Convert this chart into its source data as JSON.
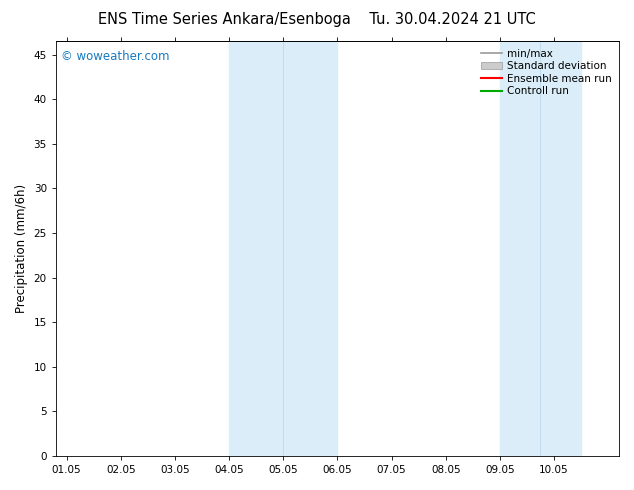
{
  "title_left": "ENS Time Series Ankara/Esenboga",
  "title_right": "Tu. 30.04.2024 21 UTC",
  "ylabel": "Precipitation (mm/6h)",
  "ylim": [
    0,
    46.5
  ],
  "yticks": [
    0,
    5,
    10,
    15,
    20,
    25,
    30,
    35,
    40,
    45
  ],
  "xtick_labels": [
    "01.05",
    "02.05",
    "03.05",
    "04.05",
    "05.05",
    "06.05",
    "07.05",
    "08.05",
    "09.05",
    "10.05"
  ],
  "xtick_positions": [
    0,
    1,
    2,
    3,
    4,
    5,
    6,
    7,
    8,
    9
  ],
  "xlim": [
    -0.2,
    10.2
  ],
  "watermark": "© woweather.com",
  "shaded_regions": [
    {
      "xstart": 3.0,
      "xend": 5.0,
      "color": "#daedf8"
    },
    {
      "xstart": 8.0,
      "xend": 9.5,
      "color": "#daedf8"
    }
  ],
  "shade_divider_lines": [
    {
      "x": 4.0,
      "color": "#c0dded"
    },
    {
      "x": 8.75,
      "color": "#c0dded"
    }
  ],
  "legend_entries": [
    {
      "label": "min/max",
      "color": "#999999",
      "lw": 1.2,
      "style": "-",
      "type": "line"
    },
    {
      "label": "Standard deviation",
      "color": "#cccccc",
      "lw": 5,
      "style": "-",
      "type": "patch"
    },
    {
      "label": "Ensemble mean run",
      "color": "#ff0000",
      "lw": 1.5,
      "style": "-",
      "type": "line"
    },
    {
      "label": "Controll run",
      "color": "#00aa00",
      "lw": 1.5,
      "style": "-",
      "type": "line"
    }
  ],
  "bg_color": "#ffffff",
  "plot_bg_color": "#ffffff",
  "title_fontsize": 10.5,
  "tick_fontsize": 7.5,
  "ylabel_fontsize": 8.5,
  "watermark_color": "#1a7abf",
  "watermark_fontsize": 8.5,
  "legend_fontsize": 7.5
}
